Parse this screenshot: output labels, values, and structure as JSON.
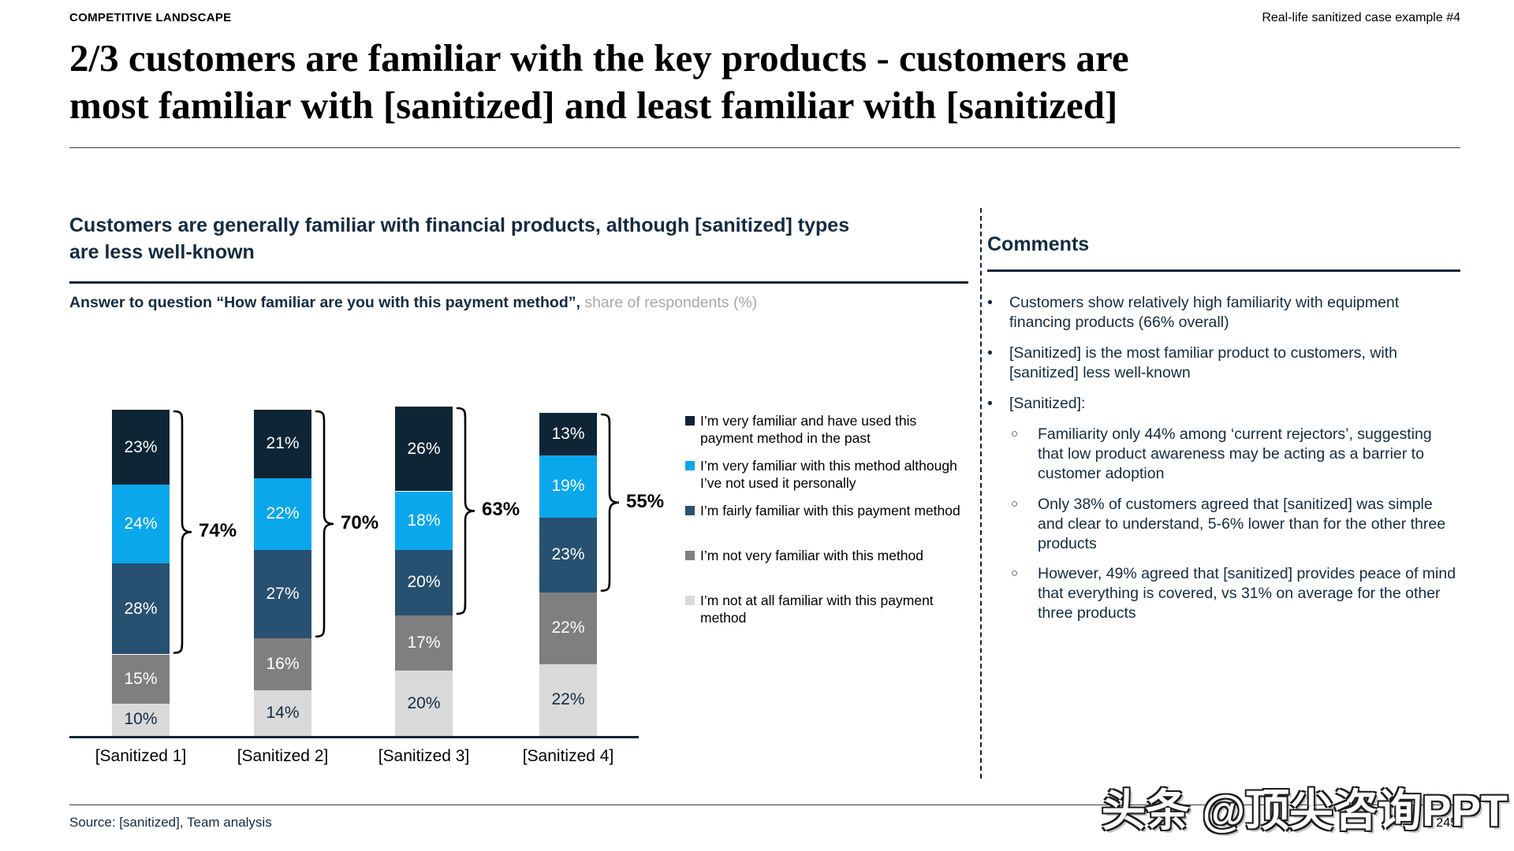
{
  "page": {
    "eyebrow": "COMPETITIVE LANDSCAPE",
    "case_label": "Real-life sanitized case example #4",
    "title": "2/3 customers are familiar with the key products - customers are\nmost familiar with [sanitized] and least familiar with [sanitized]",
    "source": "Source: [sanitized], Team analysis",
    "page_number": "245",
    "watermark": "头条 @顶尖咨询PPT"
  },
  "left_panel": {
    "heading": "Customers are generally familiar with financial products, although [sanitized] types\nare less well-known",
    "subheading_bold": "Answer to question “How familiar are you with this payment method”,",
    "subheading_note": " share of respondents (%)"
  },
  "chart_data": {
    "type": "bar",
    "stacked": true,
    "title": "Answer to question “How familiar are you with this payment method”, share of respondents (%)",
    "unit": "%",
    "ylim": [
      0,
      100
    ],
    "grid": false,
    "legend_position": "right",
    "categories": [
      "[Sanitized 1]",
      "[Sanitized 2]",
      "[Sanitized 3]",
      "[Sanitized 4]"
    ],
    "series": [
      {
        "name": "I’m very familiar and have used this payment method in the past",
        "color": "#0E2536",
        "label_color": "#FFFFFF",
        "values": [
          23,
          21,
          26,
          13
        ]
      },
      {
        "name": "I’m very familiar with this method although I’ve not used it personally",
        "color": "#0BA7EC",
        "label_color": "#FFFFFF",
        "values": [
          24,
          22,
          18,
          19
        ]
      },
      {
        "name": "I’m fairly familiar with this payment method",
        "color": "#285070",
        "label_color": "#FFFFFF",
        "values": [
          28,
          27,
          20,
          23
        ]
      },
      {
        "name": "I’m not very familiar with this method",
        "color": "#7F7F7F",
        "label_color": "#FFFFFF",
        "values": [
          15,
          16,
          17,
          22
        ]
      },
      {
        "name": "I’m not at all familiar with this payment method",
        "color": "#D9D9D9",
        "label_color": "#132B42",
        "values": [
          10,
          14,
          20,
          22
        ]
      }
    ],
    "bracket_totals": [
      "74%",
      "70%",
      "63%",
      "55%"
    ]
  },
  "comments": {
    "title": "Comments",
    "bullets": [
      {
        "level": 1,
        "text": "Customers show relatively high familiarity with equipment financing products (66% overall)"
      },
      {
        "level": 1,
        "text": "[Sanitized] is the most familiar product to customers, with [sanitized] less well-known"
      },
      {
        "level": 1,
        "text": "[Sanitized]:"
      },
      {
        "level": 2,
        "text": "Familiarity only 44% among ‘current rejectors’, suggesting that low product awareness may be acting as a barrier to customer adoption"
      },
      {
        "level": 2,
        "text": "Only 38% of customers agreed that [sanitized] was simple and clear to understand, 5-6% lower than for the other three products"
      },
      {
        "level": 2,
        "text": "However, 49% agreed that [sanitized] provides peace of mind that everything is covered, vs 31% on average for the other three products"
      }
    ]
  }
}
